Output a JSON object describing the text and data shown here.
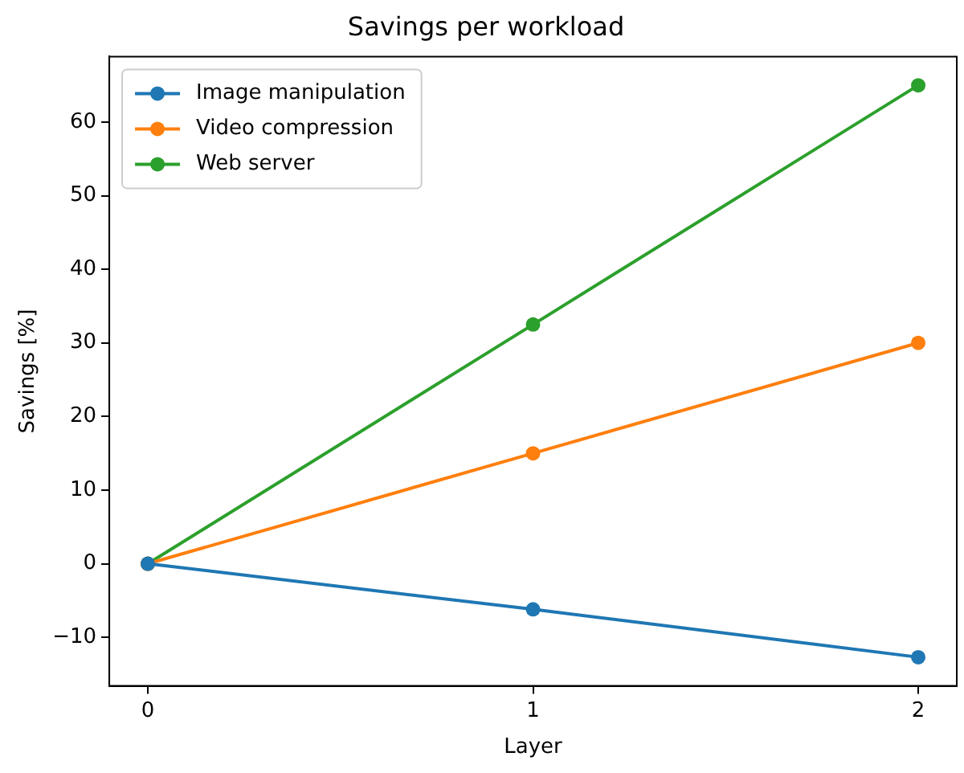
{
  "chart_data": {
    "type": "line",
    "title": "Savings per workload",
    "xlabel": "Layer",
    "ylabel": "Savings [%]",
    "x": [
      0,
      1,
      2
    ],
    "series": [
      {
        "name": "Image manipulation",
        "color": "#1f77b4",
        "values": [
          0,
          -6.2,
          -12.7
        ]
      },
      {
        "name": "Video compression",
        "color": "#ff7f0e",
        "values": [
          0,
          15,
          30
        ]
      },
      {
        "name": "Web server",
        "color": "#2ca02c",
        "values": [
          0,
          32.5,
          65
        ]
      }
    ],
    "xlim": [
      -0.1,
      2.1
    ],
    "xticks": [
      0,
      1,
      2
    ],
    "ylim": [
      -16.6,
      68.9
    ],
    "yticks": [
      {
        "value": -10,
        "label": "−10"
      },
      0,
      10,
      20,
      30,
      40,
      50,
      60
    ],
    "grid": false,
    "legend": "top left",
    "marker": "circle",
    "line_style": "solid"
  }
}
